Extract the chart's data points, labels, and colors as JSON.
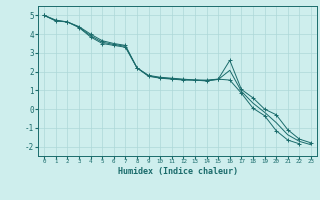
{
  "xlabel": "Humidex (Indice chaleur)",
  "bg_color": "#ceeeed",
  "grid_color": "#aed8d8",
  "line_color": "#1a6b6b",
  "xlim": [
    -0.5,
    23.5
  ],
  "ylim": [
    -2.5,
    5.5
  ],
  "yticks": [
    -2,
    -1,
    0,
    1,
    2,
    3,
    4,
    5
  ],
  "xticks": [
    0,
    1,
    2,
    3,
    4,
    5,
    6,
    7,
    8,
    9,
    10,
    11,
    12,
    13,
    14,
    15,
    16,
    17,
    18,
    19,
    20,
    21,
    22,
    23
  ],
  "line1_x": [
    0,
    1,
    2,
    3,
    4,
    5,
    6,
    7,
    8,
    9,
    10,
    11,
    12,
    13,
    14,
    15,
    16,
    17,
    18,
    19,
    20,
    21,
    22,
    23
  ],
  "line1_y": [
    5.0,
    4.75,
    4.65,
    4.4,
    4.0,
    3.65,
    3.5,
    3.4,
    2.2,
    1.8,
    1.7,
    1.65,
    1.6,
    1.55,
    1.55,
    1.6,
    1.55,
    0.85,
    0.05,
    -0.35,
    -1.15,
    -1.65,
    -1.85,
    null
  ],
  "line2_x": [
    0,
    1,
    2,
    3,
    4,
    5,
    6,
    7,
    8,
    9,
    10,
    11,
    12,
    13,
    14,
    15,
    16,
    17,
    18,
    19,
    20,
    21,
    22,
    23
  ],
  "line2_y": [
    5.0,
    4.7,
    4.65,
    4.35,
    3.85,
    3.5,
    3.4,
    3.3,
    2.2,
    1.75,
    1.65,
    1.6,
    1.55,
    1.55,
    1.5,
    1.6,
    2.6,
    1.05,
    0.6,
    0.0,
    -0.3,
    -1.1,
    -1.6,
    -1.8
  ],
  "line3_x": [
    0,
    1,
    2,
    3,
    4,
    5,
    6,
    7,
    8,
    9,
    10,
    11,
    12,
    13,
    14,
    15,
    16,
    17,
    18,
    19,
    20,
    21,
    22,
    23
  ],
  "line3_y": [
    5.0,
    4.72,
    4.65,
    4.37,
    3.92,
    3.57,
    3.45,
    3.35,
    2.2,
    1.77,
    1.67,
    1.62,
    1.57,
    1.55,
    1.52,
    1.58,
    2.07,
    0.95,
    0.32,
    -0.17,
    -0.72,
    -1.37,
    -1.72,
    -1.9
  ]
}
